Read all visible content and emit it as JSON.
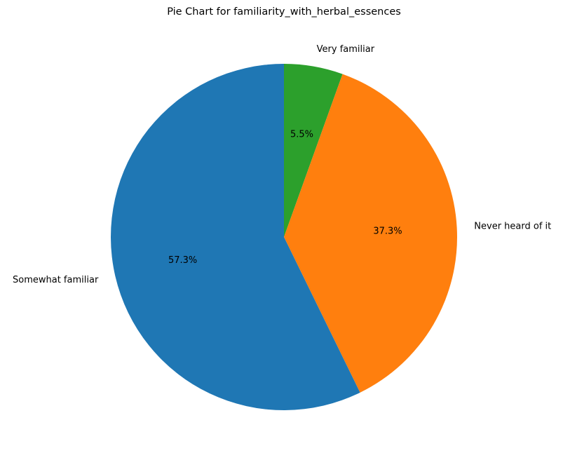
{
  "chart_data": {
    "type": "pie",
    "title": "Pie Chart for familiarity_with_herbal_essences",
    "start_angle_deg": 90,
    "direction": "clockwise",
    "slices": [
      {
        "label": "Very familiar",
        "value": 5.5,
        "pct_label": "5.5%",
        "color": "#2ca02c"
      },
      {
        "label": "Never heard of it",
        "value": 37.3,
        "pct_label": "37.3%",
        "color": "#ff7f0e"
      },
      {
        "label": "Somewhat familiar",
        "value": 57.3,
        "pct_label": "57.3%",
        "color": "#1f77b4"
      }
    ]
  }
}
